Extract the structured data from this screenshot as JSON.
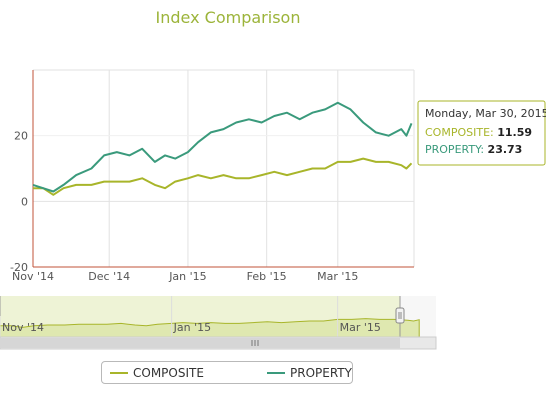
{
  "chart_data": {
    "type": "line",
    "title": "Index Comparison",
    "x_labels": [
      "Nov '14",
      "Dec '14",
      "Jan '15",
      "Feb '15",
      "Mar '15"
    ],
    "x_tick_dates": [
      "2014-11-01",
      "2014-12-01",
      "2015-01-01",
      "2015-02-01",
      "2015-03-01"
    ],
    "x_range": [
      "2014-11-01",
      "2015-03-31"
    ],
    "y_ticks": [
      -20,
      0,
      20
    ],
    "ylim": [
      -20,
      40
    ],
    "grid": "vertical",
    "legend_position": "bottom",
    "series": [
      {
        "name": "COMPOSITE",
        "color": "#a8b52a",
        "points": [
          [
            "2014-11-01",
            4
          ],
          [
            "2014-11-05",
            4
          ],
          [
            "2014-11-09",
            2
          ],
          [
            "2014-11-13",
            4
          ],
          [
            "2014-11-18",
            5
          ],
          [
            "2014-11-24",
            5
          ],
          [
            "2014-11-29",
            6
          ],
          [
            "2014-12-04",
            6
          ],
          [
            "2014-12-09",
            6
          ],
          [
            "2014-12-14",
            7
          ],
          [
            "2014-12-19",
            5
          ],
          [
            "2014-12-23",
            4
          ],
          [
            "2014-12-27",
            6
          ],
          [
            "2015-01-01",
            7
          ],
          [
            "2015-01-05",
            8
          ],
          [
            "2015-01-10",
            7
          ],
          [
            "2015-01-15",
            8
          ],
          [
            "2015-01-20",
            7
          ],
          [
            "2015-01-25",
            7
          ],
          [
            "2015-01-30",
            8
          ],
          [
            "2015-02-04",
            9
          ],
          [
            "2015-02-09",
            8
          ],
          [
            "2015-02-14",
            9
          ],
          [
            "2015-02-19",
            10
          ],
          [
            "2015-02-24",
            10
          ],
          [
            "2015-03-01",
            12
          ],
          [
            "2015-03-06",
            12
          ],
          [
            "2015-03-11",
            13
          ],
          [
            "2015-03-16",
            12
          ],
          [
            "2015-03-21",
            12
          ],
          [
            "2015-03-26",
            11
          ],
          [
            "2015-03-28",
            10
          ],
          [
            "2015-03-30",
            11.59
          ]
        ]
      },
      {
        "name": "PROPERTY",
        "color": "#3a9a7c",
        "points": [
          [
            "2014-11-01",
            5
          ],
          [
            "2014-11-05",
            4
          ],
          [
            "2014-11-09",
            3
          ],
          [
            "2014-11-13",
            5
          ],
          [
            "2014-11-18",
            8
          ],
          [
            "2014-11-24",
            10
          ],
          [
            "2014-11-29",
            14
          ],
          [
            "2014-12-04",
            15
          ],
          [
            "2014-12-09",
            14
          ],
          [
            "2014-12-14",
            16
          ],
          [
            "2014-12-19",
            12
          ],
          [
            "2014-12-23",
            14
          ],
          [
            "2014-12-27",
            13
          ],
          [
            "2015-01-01",
            15
          ],
          [
            "2015-01-05",
            18
          ],
          [
            "2015-01-10",
            21
          ],
          [
            "2015-01-15",
            22
          ],
          [
            "2015-01-20",
            24
          ],
          [
            "2015-01-25",
            25
          ],
          [
            "2015-01-30",
            24
          ],
          [
            "2015-02-04",
            26
          ],
          [
            "2015-02-09",
            27
          ],
          [
            "2015-02-14",
            25
          ],
          [
            "2015-02-19",
            27
          ],
          [
            "2015-02-24",
            28
          ],
          [
            "2015-03-01",
            30
          ],
          [
            "2015-03-06",
            28
          ],
          [
            "2015-03-11",
            24
          ],
          [
            "2015-03-16",
            21
          ],
          [
            "2015-03-21",
            20
          ],
          [
            "2015-03-26",
            22
          ],
          [
            "2015-03-28",
            20
          ],
          [
            "2015-03-30",
            23.73
          ]
        ]
      }
    ]
  },
  "tooltip": {
    "date": "Monday, Mar 30, 2015",
    "rows": [
      {
        "label": "COMPOSITE",
        "value": "11.59",
        "color": "#a8b52a"
      },
      {
        "label": "PROPERTY",
        "value": "23.73",
        "color": "#3a9a7c"
      }
    ]
  },
  "navigator": {
    "labels": [
      "Nov '14",
      "Jan '15",
      "Mar '15"
    ],
    "label_dates": [
      "2014-11-01",
      "2015-01-01",
      "2015-03-01"
    ]
  },
  "legend": [
    "COMPOSITE",
    "PROPERTY"
  ]
}
